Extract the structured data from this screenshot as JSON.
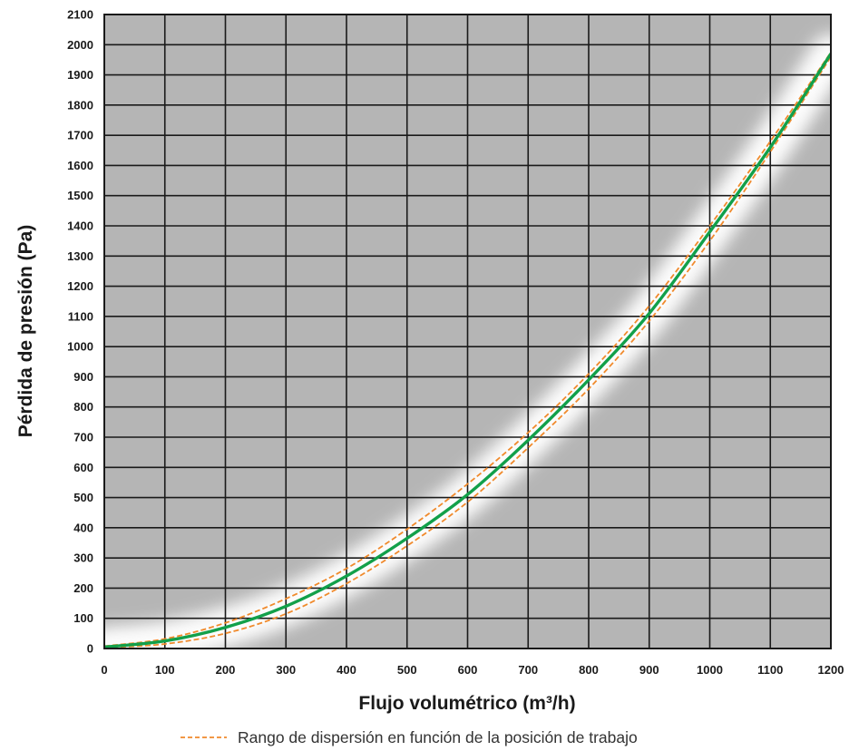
{
  "chart_data": {
    "type": "line",
    "title": "",
    "xlabel": "Flujo volumétrico (m³/h)",
    "ylabel": "Pérdida de presión (Pa)",
    "xlim": [
      0,
      1200
    ],
    "ylim": [
      0,
      2100
    ],
    "x_ticks": [
      0,
      100,
      200,
      300,
      400,
      500,
      600,
      700,
      800,
      900,
      1000,
      1100,
      1200
    ],
    "y_ticks": [
      0,
      100,
      200,
      300,
      400,
      500,
      600,
      700,
      800,
      900,
      1000,
      1100,
      1200,
      1300,
      1400,
      1500,
      1600,
      1700,
      1800,
      1900,
      2000,
      2100
    ],
    "x_tick_labels": [
      "0",
      "100",
      "200",
      "300",
      "400",
      "500",
      "600",
      "700",
      "800",
      "900",
      "1000",
      "1100",
      "1200"
    ],
    "y_tick_labels": [
      "0",
      "100",
      "200",
      "300",
      "400",
      "500",
      "600",
      "700",
      "800",
      "900",
      "1000",
      "1100",
      "1200",
      "1300",
      "1400",
      "1500",
      "1600",
      "1700",
      "1800",
      "1900",
      "2000",
      "2100"
    ],
    "grid": true,
    "legend_position": "bottom",
    "legend": {
      "label": "Rango de dispersión en función de la posición de trabajo"
    },
    "colors": {
      "plot_background": "#b5b5b5",
      "grid": "#1a1a1a",
      "main_line": "#12a04a",
      "band_line": "#f08a2c"
    },
    "x": [
      0,
      100,
      200,
      300,
      400,
      500,
      600,
      700,
      800,
      900,
      1000,
      1100,
      1200
    ],
    "series": [
      {
        "role": "main",
        "values": [
          5,
          25,
          70,
          140,
          240,
          365,
          510,
          690,
          890,
          1110,
          1380,
          1660,
          1970
        ]
      },
      {
        "role": "upper",
        "values": [
          8,
          32,
          85,
          165,
          265,
          395,
          545,
          715,
          910,
          1135,
          1400,
          1680,
          1975
        ]
      },
      {
        "role": "lower",
        "values": [
          3,
          15,
          50,
          115,
          215,
          340,
          485,
          665,
          860,
          1085,
          1350,
          1645,
          1960
        ]
      }
    ]
  }
}
